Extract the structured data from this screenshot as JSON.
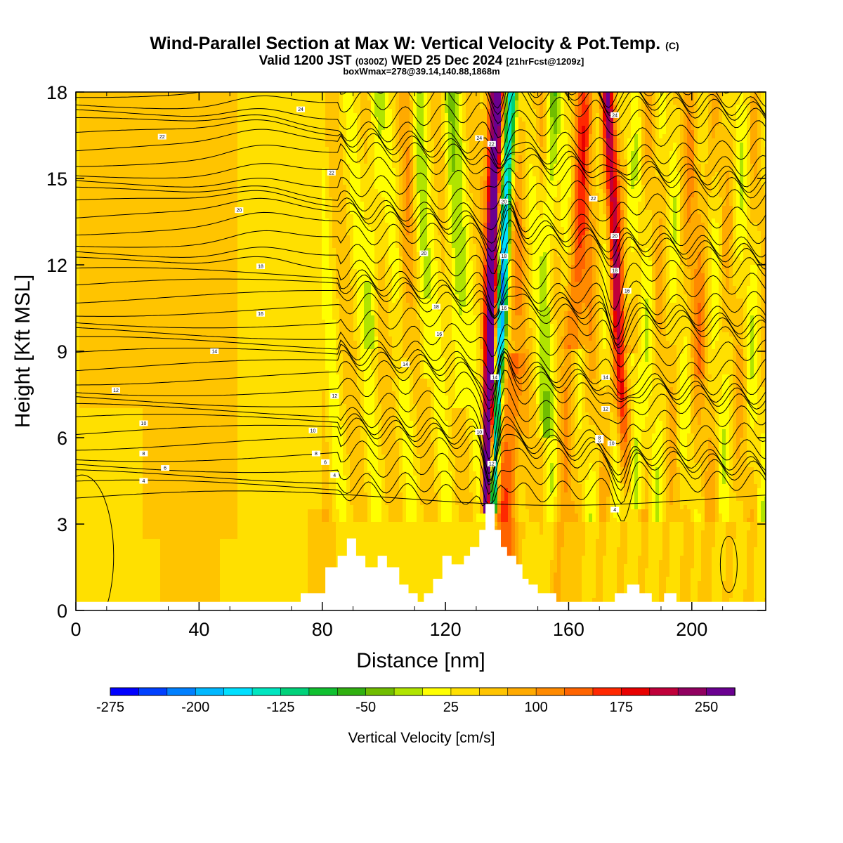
{
  "header": {
    "title_main": "Wind-Parallel Section at Max W: Vertical Velocity & Pot.Temp.",
    "title_mark": "(C)",
    "subtitle_prefix": "Valid 1200 JST",
    "subtitle_utc": "(0300Z)",
    "subtitle_date": "WED 25 Dec 2024",
    "subtitle_fcst": "[21hrFcst@1209z]",
    "subtitle_box": "boxWmax=278@39.14,140.88,1868m"
  },
  "chart_data": {
    "type": "heatmap",
    "xlabel": "Distance [nm]",
    "ylabel": "Height [Kft MSL]",
    "xlim": [
      0,
      224
    ],
    "ylim": [
      0,
      18
    ],
    "x_ticks": [
      0,
      40,
      80,
      120,
      160,
      200
    ],
    "y_ticks": [
      0,
      3,
      6,
      9,
      12,
      15,
      18
    ],
    "grid": false,
    "colorbar": {
      "label": "Vertical Velocity [cm/s]",
      "placement": "bottom",
      "tick_labels": [
        "-275",
        "-200",
        "-125",
        "-50",
        "25",
        "100",
        "175",
        "250"
      ],
      "colors": [
        "#0000ff",
        "#0040ff",
        "#0080ff",
        "#00b8ff",
        "#00e0ff",
        "#00e6c0",
        "#00d27a",
        "#10c030",
        "#30b010",
        "#70bd00",
        "#b0e400",
        "#ffff00",
        "#ffe000",
        "#ffc400",
        "#ffaa00",
        "#ff8a00",
        "#ff6400",
        "#ff2800",
        "#e80000",
        "#c0003a",
        "#900060",
        "#6a0090"
      ]
    },
    "theta_contour_labels": [
      "4",
      "6",
      "8",
      "10",
      "12",
      "14",
      "16",
      "18",
      "20",
      "22",
      "24"
    ],
    "terrain_profile": [
      [
        0,
        0.3
      ],
      [
        72,
        0.3
      ],
      [
        73,
        0.6
      ],
      [
        80,
        0.6
      ],
      [
        81,
        1.5
      ],
      [
        84,
        1.5
      ],
      [
        85,
        1.9
      ],
      [
        87,
        1.9
      ],
      [
        88,
        2.5
      ],
      [
        90,
        2.5
      ],
      [
        91,
        1.9
      ],
      [
        93,
        1.9
      ],
      [
        94,
        1.5
      ],
      [
        97,
        1.5
      ],
      [
        98,
        1.9
      ],
      [
        100,
        1.9
      ],
      [
        101,
        1.5
      ],
      [
        104,
        1.5
      ],
      [
        105,
        0.9
      ],
      [
        107,
        0.9
      ],
      [
        108,
        0.6
      ],
      [
        110,
        0.6
      ],
      [
        111,
        0.3
      ],
      [
        112,
        0.3
      ],
      [
        113,
        0.6
      ],
      [
        115,
        0.6
      ],
      [
        116,
        1.1
      ],
      [
        118,
        1.1
      ],
      [
        119,
        1.9
      ],
      [
        121,
        1.9
      ],
      [
        122,
        1.6
      ],
      [
        125,
        1.6
      ],
      [
        126,
        1.9
      ],
      [
        127,
        1.9
      ],
      [
        128,
        2.2
      ],
      [
        130,
        2.2
      ],
      [
        131,
        2.8
      ],
      [
        132,
        2.8
      ],
      [
        133,
        3.7
      ],
      [
        135,
        3.7
      ],
      [
        136,
        2.8
      ],
      [
        137,
        2.8
      ],
      [
        138,
        2.2
      ],
      [
        139,
        2.2
      ],
      [
        140,
        1.9
      ],
      [
        142,
        1.9
      ],
      [
        143,
        1.6
      ],
      [
        144,
        1.6
      ],
      [
        145,
        1.1
      ],
      [
        146,
        1.1
      ],
      [
        147,
        0.9
      ],
      [
        149,
        0.9
      ],
      [
        150,
        0.6
      ],
      [
        155,
        0.6
      ],
      [
        156,
        0.3
      ],
      [
        174,
        0.3
      ],
      [
        175,
        0.6
      ],
      [
        178,
        0.6
      ],
      [
        179,
        0.9
      ],
      [
        182,
        0.9
      ],
      [
        183,
        0.6
      ],
      [
        186,
        0.6
      ],
      [
        187,
        0.3
      ],
      [
        190,
        0.3
      ],
      [
        191,
        0.6
      ],
      [
        194,
        0.6
      ],
      [
        195,
        0.3
      ],
      [
        224,
        0.3
      ]
    ]
  }
}
